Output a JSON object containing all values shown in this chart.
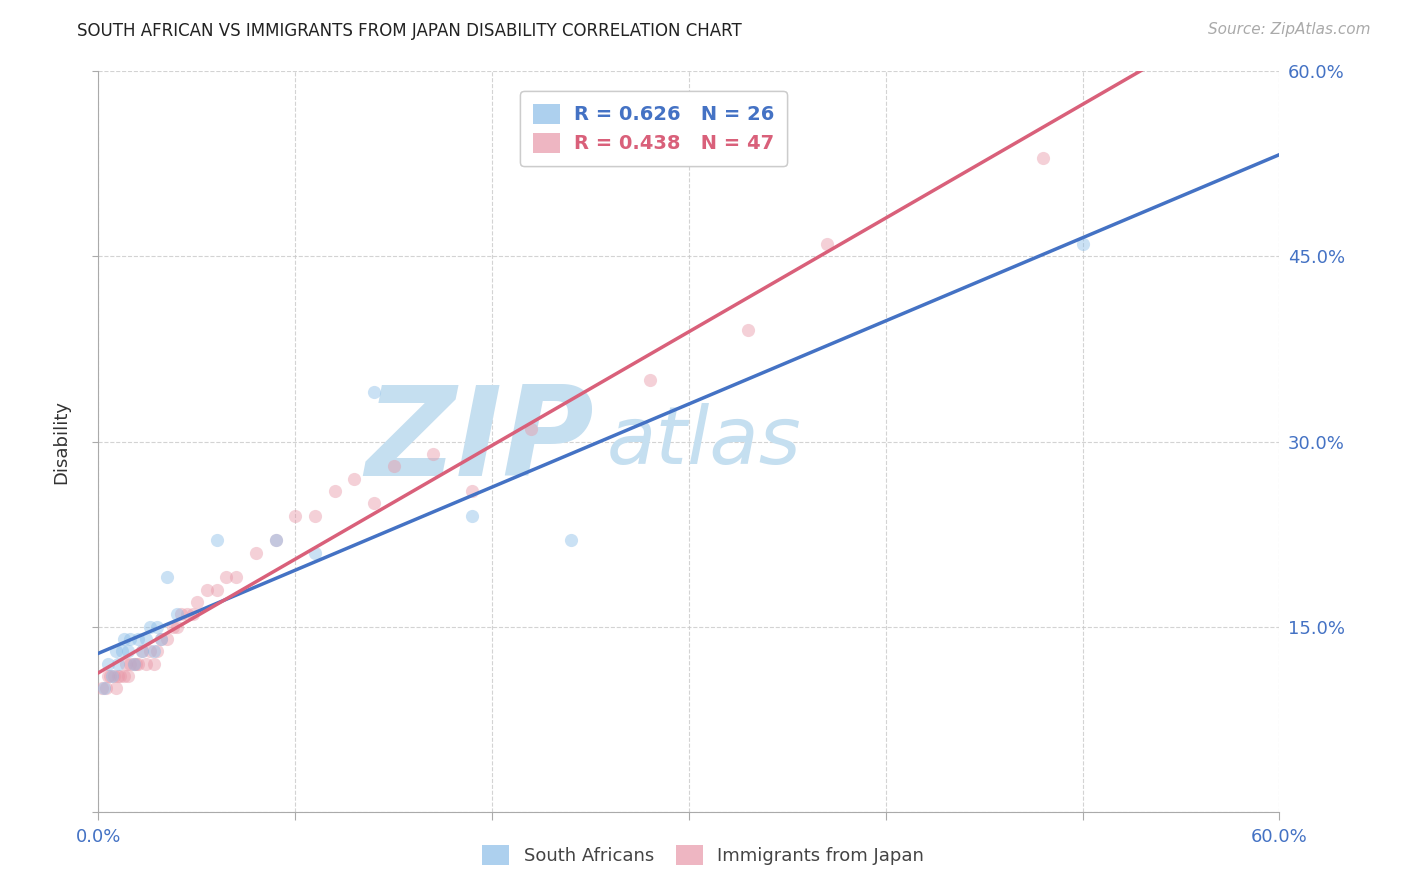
{
  "title": "SOUTH AFRICAN VS IMMIGRANTS FROM JAPAN DISABILITY CORRELATION CHART",
  "source": "Source: ZipAtlas.com",
  "ylabel": "Disability",
  "xlim": [
    0.0,
    0.6
  ],
  "ylim": [
    0.0,
    0.6
  ],
  "xticks": [
    0.0,
    0.1,
    0.2,
    0.3,
    0.4,
    0.5,
    0.6
  ],
  "yticks": [
    0.0,
    0.15,
    0.3,
    0.45,
    0.6
  ],
  "background_color": "#ffffff",
  "grid_color": "#c8c8c8",
  "watermark_zip": "ZIP",
  "watermark_atlas": "atlas",
  "watermark_color": "#c5dff0",
  "series1_label": "South Africans",
  "series1_color": "#8bbde8",
  "series1_R": 0.626,
  "series1_N": 26,
  "series1_x": [
    0.003,
    0.005,
    0.007,
    0.009,
    0.01,
    0.012,
    0.013,
    0.015,
    0.016,
    0.018,
    0.02,
    0.022,
    0.024,
    0.026,
    0.028,
    0.03,
    0.032,
    0.035,
    0.04,
    0.06,
    0.09,
    0.11,
    0.14,
    0.19,
    0.24,
    0.5
  ],
  "series1_y": [
    0.1,
    0.12,
    0.11,
    0.13,
    0.12,
    0.13,
    0.14,
    0.13,
    0.14,
    0.12,
    0.14,
    0.13,
    0.14,
    0.15,
    0.13,
    0.15,
    0.14,
    0.19,
    0.16,
    0.22,
    0.22,
    0.21,
    0.34,
    0.24,
    0.22,
    0.46
  ],
  "series2_label": "Immigrants from Japan",
  "series2_color": "#e898a8",
  "series2_R": 0.438,
  "series2_N": 47,
  "series2_x": [
    0.002,
    0.004,
    0.005,
    0.006,
    0.008,
    0.009,
    0.01,
    0.011,
    0.013,
    0.014,
    0.015,
    0.016,
    0.018,
    0.019,
    0.02,
    0.022,
    0.024,
    0.026,
    0.028,
    0.03,
    0.032,
    0.035,
    0.038,
    0.04,
    0.042,
    0.045,
    0.048,
    0.05,
    0.055,
    0.06,
    0.065,
    0.07,
    0.08,
    0.09,
    0.1,
    0.11,
    0.12,
    0.13,
    0.14,
    0.15,
    0.17,
    0.19,
    0.22,
    0.28,
    0.33,
    0.37,
    0.48
  ],
  "series2_y": [
    0.1,
    0.1,
    0.11,
    0.11,
    0.11,
    0.1,
    0.11,
    0.11,
    0.11,
    0.12,
    0.11,
    0.12,
    0.12,
    0.12,
    0.12,
    0.13,
    0.12,
    0.13,
    0.12,
    0.13,
    0.14,
    0.14,
    0.15,
    0.15,
    0.16,
    0.16,
    0.16,
    0.17,
    0.18,
    0.18,
    0.19,
    0.19,
    0.21,
    0.22,
    0.24,
    0.24,
    0.26,
    0.27,
    0.25,
    0.28,
    0.29,
    0.26,
    0.31,
    0.35,
    0.39,
    0.46,
    0.53
  ],
  "legend_R1": "R = 0.626",
  "legend_N1": "N = 26",
  "legend_R2": "R = 0.438",
  "legend_N2": "N = 47",
  "trendline1_color": "#4472c4",
  "trendline2_color": "#d9607a",
  "marker_size": 90,
  "marker_alpha": 0.45
}
